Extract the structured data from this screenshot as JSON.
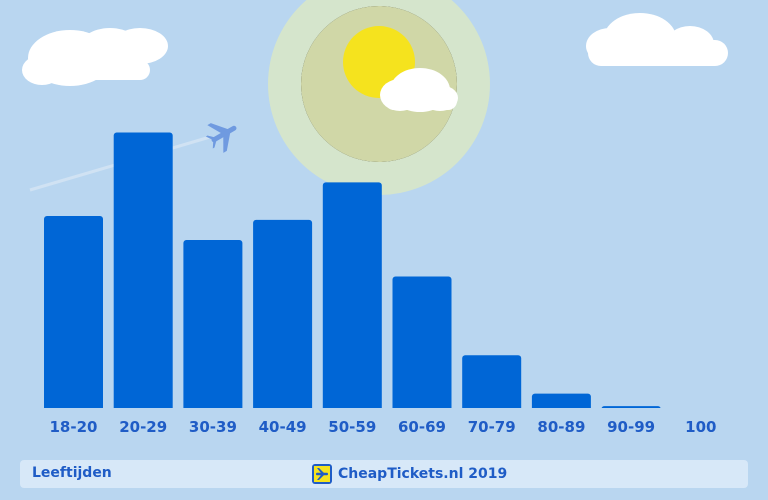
{
  "chart_data": {
    "type": "bar",
    "categories": [
      "18-20",
      "20-29",
      "30-39",
      "40-49",
      "50-59",
      "60-69",
      "70-79",
      "80-89",
      "90-99",
      "100"
    ],
    "values": [
      200,
      287,
      175,
      196,
      235,
      137,
      55,
      15,
      2,
      0
    ],
    "ylim": [
      0,
      300
    ],
    "grid": false,
    "bar_color": "#0066d6",
    "label_color": "#1f5cc6"
  },
  "footer": {
    "label": "Leeftijden",
    "brand": "CheapTickets.nl 2019"
  },
  "colors": {
    "sky": "#b9d6f0",
    "sun": "#f5e31e",
    "cloud": "#ffffff"
  }
}
